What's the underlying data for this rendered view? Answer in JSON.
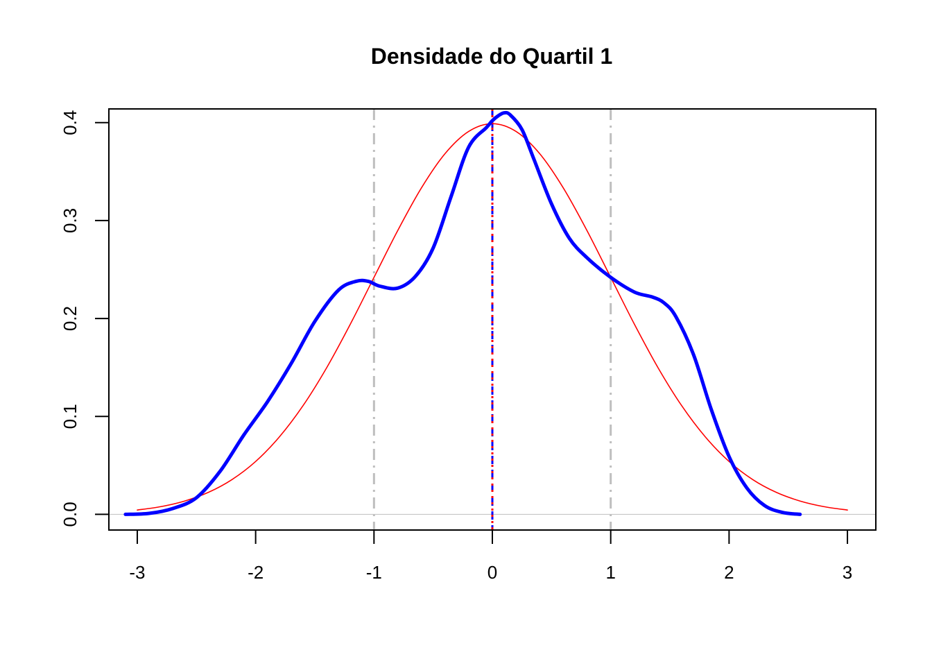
{
  "chart_data": {
    "type": "line",
    "title": "Densidade do Quartil 1",
    "xlabel": "",
    "ylabel": "",
    "xlim": [
      -3.24,
      3.24
    ],
    "ylim": [
      -0.016,
      0.414
    ],
    "x_ticks": [
      "-3",
      "-2",
      "-1",
      "0",
      "1",
      "2",
      "3"
    ],
    "y_ticks": [
      "0.0",
      "0.1",
      "0.2",
      "0.3",
      "0.4"
    ],
    "grid": false,
    "legend": "none",
    "series": [
      {
        "style": "thick solid",
        "color": "#0000FF",
        "x": [
          -3.1,
          -2.9,
          -2.7,
          -2.5,
          -2.3,
          -2.1,
          -1.9,
          -1.7,
          -1.5,
          -1.3,
          -1.15,
          -1.05,
          -0.95,
          -0.8,
          -0.65,
          -0.5,
          -0.35,
          -0.2,
          -0.05,
          0.0,
          0.05,
          0.1,
          0.15,
          0.25,
          0.35,
          0.5,
          0.65,
          0.8,
          1.0,
          1.2,
          1.35,
          1.45,
          1.55,
          1.7,
          1.85,
          2.0,
          2.15,
          2.3,
          2.45,
          2.6
        ],
        "y": [
          0.0,
          0.001,
          0.006,
          0.017,
          0.044,
          0.081,
          0.115,
          0.154,
          0.197,
          0.229,
          0.238,
          0.238,
          0.233,
          0.231,
          0.243,
          0.272,
          0.324,
          0.375,
          0.395,
          0.402,
          0.407,
          0.41,
          0.408,
          0.393,
          0.363,
          0.317,
          0.282,
          0.262,
          0.242,
          0.227,
          0.222,
          0.216,
          0.202,
          0.163,
          0.107,
          0.059,
          0.027,
          0.009,
          0.002,
          0.0
        ]
      },
      {
        "style": "thin solid",
        "color": "#FF0000",
        "x": [
          -3.0,
          -2.8,
          -2.6,
          -2.4,
          -2.2,
          -2.0,
          -1.8,
          -1.6,
          -1.4,
          -1.2,
          -1.0,
          -0.8,
          -0.6,
          -0.4,
          -0.2,
          0.0,
          0.2,
          0.4,
          0.6,
          0.8,
          1.0,
          1.2,
          1.4,
          1.6,
          1.8,
          2.0,
          2.2,
          2.4,
          2.6,
          2.8,
          3.0
        ],
        "y": [
          0.0044,
          0.0079,
          0.0136,
          0.0224,
          0.0355,
          0.054,
          0.079,
          0.1109,
          0.1497,
          0.1942,
          0.242,
          0.2897,
          0.3332,
          0.3683,
          0.391,
          0.3989,
          0.391,
          0.3683,
          0.3332,
          0.2897,
          0.242,
          0.1942,
          0.1497,
          0.1109,
          0.079,
          0.054,
          0.0355,
          0.0224,
          0.0136,
          0.0079,
          0.0044
        ]
      }
    ],
    "reference_lines": [
      {
        "orientation": "horizontal",
        "y": 0,
        "color": "#BEBEBE",
        "style": "solid"
      },
      {
        "orientation": "vertical",
        "x": -1,
        "color": "#BEBEBE",
        "style": "dot-dash"
      },
      {
        "orientation": "vertical",
        "x": 1,
        "color": "#BEBEBE",
        "style": "dot-dash"
      },
      {
        "orientation": "vertical",
        "x": 0,
        "color": "#0000FF",
        "style": "dashed"
      },
      {
        "orientation": "vertical",
        "x": 0,
        "color": "#FF0000",
        "style": "dotted"
      }
    ]
  }
}
